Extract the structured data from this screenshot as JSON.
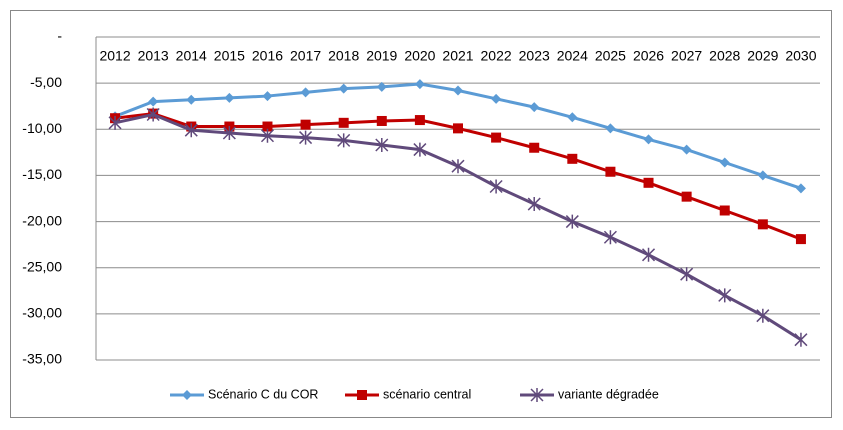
{
  "chart_data": {
    "type": "line",
    "categories": [
      "2012",
      "2013",
      "2014",
      "2015",
      "2016",
      "2017",
      "2018",
      "2019",
      "2020",
      "2021",
      "2022",
      "2023",
      "2024",
      "2025",
      "2026",
      "2027",
      "2028",
      "2029",
      "2030"
    ],
    "series": [
      {
        "name": "Scénario C du COR",
        "color": "#5b9bd5",
        "marker": "diamond",
        "values": [
          -8.6,
          -7.0,
          -6.8,
          -6.6,
          -6.4,
          -6.0,
          -5.6,
          -5.4,
          -5.1,
          -5.8,
          -6.7,
          -7.6,
          -8.7,
          -9.9,
          -11.1,
          -12.2,
          -13.6,
          -15.0,
          -16.4
        ]
      },
      {
        "name": "scénario central",
        "color": "#c00000",
        "marker": "square",
        "values": [
          -8.8,
          -8.3,
          -9.7,
          -9.7,
          -9.7,
          -9.5,
          -9.3,
          -9.1,
          -9.0,
          -9.9,
          -10.9,
          -12.0,
          -13.2,
          -14.6,
          -15.8,
          -17.3,
          -18.8,
          -20.3,
          -21.9
        ]
      },
      {
        "name": "variante dégradée",
        "color": "#604a7b",
        "marker": "star",
        "values": [
          -9.3,
          -8.4,
          -10.1,
          -10.4,
          -10.7,
          -10.9,
          -11.2,
          -11.7,
          -12.2,
          -14.0,
          -16.2,
          -18.1,
          -20.0,
          -21.7,
          -23.6,
          -25.7,
          -28.0,
          -30.2,
          -32.8
        ]
      }
    ],
    "ylim": [
      -35,
      0
    ],
    "yticks": [
      {
        "value": 0,
        "label": "-"
      },
      {
        "value": -5,
        "label": "-5,00"
      },
      {
        "value": -10,
        "label": "-10,00"
      },
      {
        "value": -15,
        "label": "-15,00"
      },
      {
        "value": -20,
        "label": "-20,00"
      },
      {
        "value": -25,
        "label": "-25,00"
      },
      {
        "value": -30,
        "label": "-30,00"
      },
      {
        "value": -35,
        "label": "-35,00"
      }
    ],
    "grid": true,
    "legend": "bottom"
  }
}
